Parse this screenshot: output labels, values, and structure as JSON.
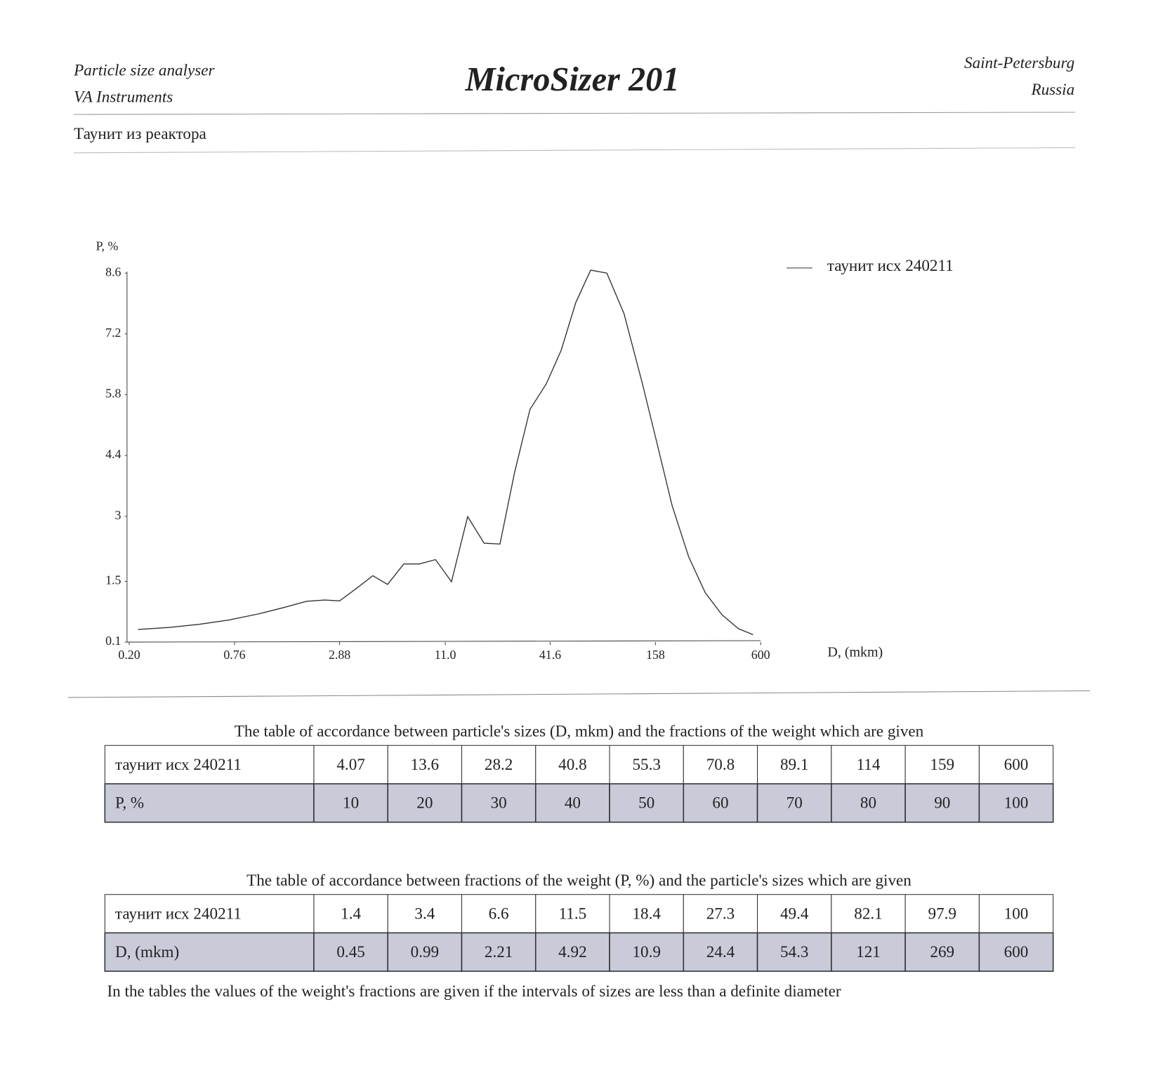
{
  "header": {
    "left": [
      "Particle size analyser",
      "VA Instruments"
    ],
    "title": "MicroSizer 201",
    "right": [
      "Saint-Petersburg",
      "Russia"
    ],
    "sample": "Таунит из реактора"
  },
  "chart_data": {
    "type": "line",
    "y_label": "P, %",
    "x_label": "D, (mkm)",
    "log_x": true,
    "grid": false,
    "legend": "top-right",
    "xlim": [
      0.2,
      600
    ],
    "ylim": [
      0.1,
      8.6
    ],
    "xticks": [
      {
        "value": 0.2,
        "label": "0.20"
      },
      0.76,
      2.88,
      {
        "value": 11,
        "label": "11.0"
      },
      41.6,
      158,
      600
    ],
    "yticks": [
      0.1,
      1.5,
      3,
      4.4,
      5.8,
      7.2,
      8.6
    ],
    "x": [
      0.224,
      0.335,
      0.486,
      0.708,
      1.03,
      1.43,
      1.89,
      2.39,
      2.88,
      3.57,
      4.39,
      5.29,
      6.5,
      7.92,
      9.72,
      11.9,
      14.6,
      18.0,
      22.0,
      26.5,
      32.2,
      39.6,
      47.8,
      57.5,
      69.5,
      85.3,
      106,
      134,
      161,
      195,
      241,
      297,
      367,
      452,
      545
    ],
    "series": [
      {
        "name": "таунит исх 240211",
        "color": "#333333",
        "values": [
          0.39,
          0.44,
          0.51,
          0.61,
          0.75,
          0.9,
          1.04,
          1.07,
          1.05,
          1.34,
          1.63,
          1.43,
          1.9,
          1.9,
          2.0,
          1.49,
          2.99,
          2.38,
          2.36,
          4.01,
          5.46,
          6.05,
          6.82,
          7.92,
          8.67,
          8.6,
          7.67,
          6.05,
          4.69,
          3.25,
          2.06,
          1.24,
          0.73,
          0.41,
          0.27
        ]
      }
    ]
  },
  "tables": [
    {
      "caption": "The table of accordance between particle's sizes (D, mkm) and the fractions of the weight which are given",
      "rows": [
        [
          "таунит исх 240211",
          "4.07",
          "13.6",
          "28.2",
          "40.8",
          "55.3",
          "70.8",
          "89.1",
          "114",
          "159",
          "600"
        ],
        [
          "P, %",
          "10",
          "20",
          "30",
          "40",
          "50",
          "60",
          "70",
          "80",
          "90",
          "100"
        ]
      ]
    },
    {
      "caption": "The table of accordance between fractions of the weight (P, %) and the particle's sizes which are given",
      "rows": [
        [
          "таунит исх 240211",
          "1.4",
          "3.4",
          "6.6",
          "11.5",
          "18.4",
          "27.3",
          "49.4",
          "82.1",
          "97.9",
          "100"
        ],
        [
          "D, (mkm)",
          "0.45",
          "0.99",
          "2.21",
          "4.92",
          "10.9",
          "24.4",
          "54.3",
          "121",
          "269",
          "600"
        ]
      ]
    }
  ],
  "footnote": "In the tables the values of the weight's fractions are given if the intervals of sizes are less than a definite diameter"
}
